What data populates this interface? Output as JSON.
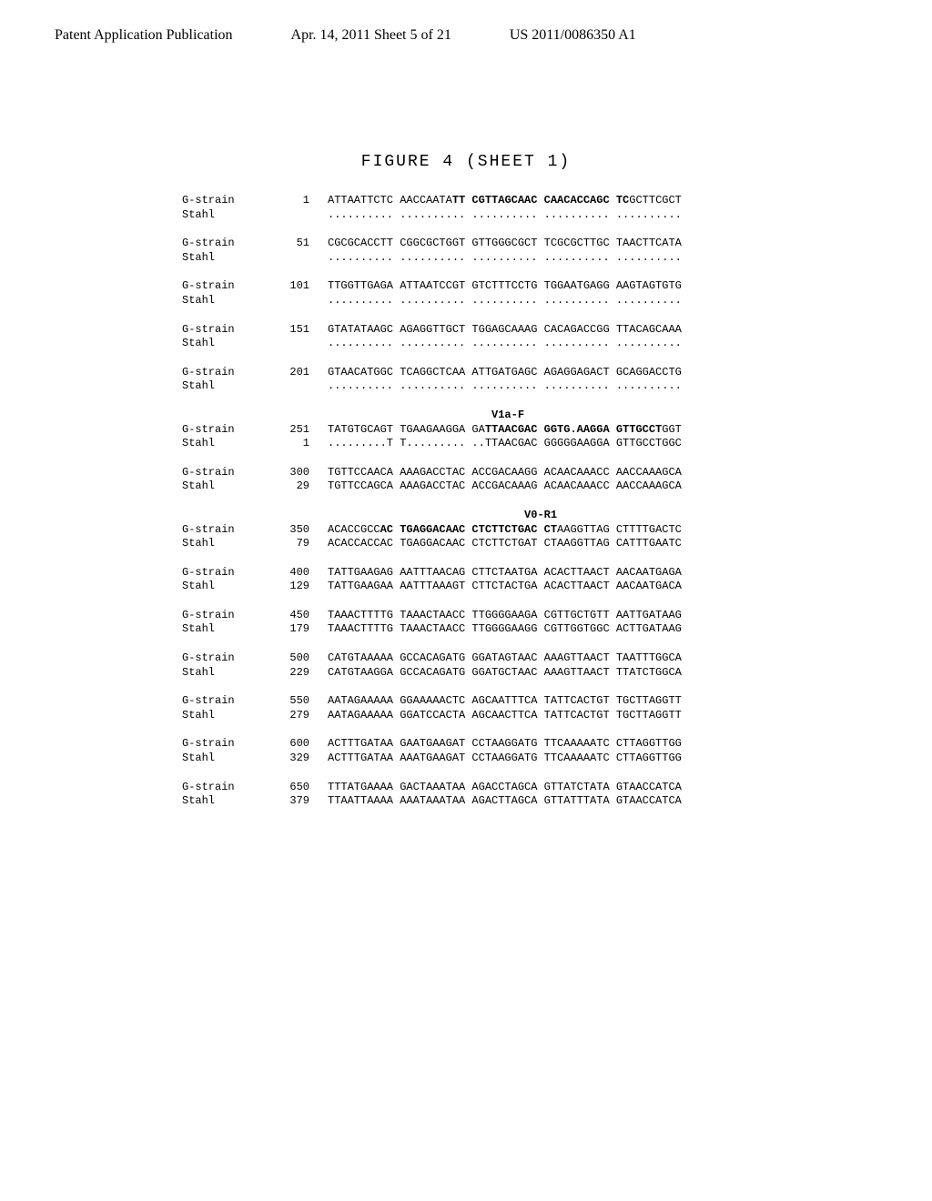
{
  "header": {
    "title": "Patent Application Publication",
    "date": "Apr. 14, 2011  Sheet 5 of 21",
    "pub": "US 2011/0086350 A1"
  },
  "figure_title": "FIGURE 4 (SHEET 1)",
  "blocks": [
    {
      "rows": [
        {
          "label": "G-strain",
          "pos": "1",
          "seq_parts": [
            {
              "t": "ATTAATTCTC AACCAATA"
            },
            {
              "t": "TT CGTTAGCAAC CAACACCAGC TC",
              "b": true
            },
            {
              "t": "GCTTCGCT"
            }
          ]
        },
        {
          "label": "Stahl",
          "pos": "",
          "seq_parts": [
            {
              "t": ".......... .......... .......... .......... .........."
            }
          ]
        }
      ]
    },
    {
      "rows": [
        {
          "label": "G-strain",
          "pos": "51",
          "seq_parts": [
            {
              "t": "CGCGCACCTT CGGCGCTGGT GTTGGGCGCT TCGCGCTTGC TAACTTCATA"
            }
          ]
        },
        {
          "label": "Stahl",
          "pos": "",
          "seq_parts": [
            {
              "t": ".......... .......... .......... .......... .........."
            }
          ]
        }
      ]
    },
    {
      "rows": [
        {
          "label": "G-strain",
          "pos": "101",
          "seq_parts": [
            {
              "t": "TTGGTTGAGA ATTAATCCGT GTCTTTCCTG TGGAATGAGG AAGTAGTGTG"
            }
          ]
        },
        {
          "label": "Stahl",
          "pos": "",
          "seq_parts": [
            {
              "t": ".......... .......... .......... .......... .........."
            }
          ]
        }
      ]
    },
    {
      "rows": [
        {
          "label": "G-strain",
          "pos": "151",
          "seq_parts": [
            {
              "t": "GTATATAAGC AGAGGTTGCT TGGAGCAAAG CACAGACCGG TTACAGCAAA"
            }
          ]
        },
        {
          "label": "Stahl",
          "pos": "",
          "seq_parts": [
            {
              "t": ".......... .......... .......... .......... .........."
            }
          ]
        }
      ]
    },
    {
      "rows": [
        {
          "label": "G-strain",
          "pos": "201",
          "seq_parts": [
            {
              "t": "GTAACATGGC TCAGGCTCAA ATTGATGAGC AGAGGAGACT GCAGGACCTG"
            }
          ]
        },
        {
          "label": "Stahl",
          "pos": "",
          "seq_parts": [
            {
              "t": ".......... .......... .......... .......... .........."
            }
          ]
        }
      ]
    },
    {
      "annotation": "                         V1a-F",
      "rows": [
        {
          "label": "G-strain",
          "pos": "251",
          "seq_parts": [
            {
              "t": "TATGTGCAGT TGAAGAAGGA GA"
            },
            {
              "t": "TTAACGAC GGTG.AAGGA GTTGCCT",
              "b": true
            },
            {
              "t": "GGT"
            }
          ]
        },
        {
          "label": "Stahl",
          "pos": "1",
          "seq_parts": [
            {
              "t": ".........T T......... ..TTAACGAC GGGGGAAGGA GTTGCCTGGC"
            }
          ]
        }
      ]
    },
    {
      "rows": [
        {
          "label": "G-strain",
          "pos": "300",
          "seq_parts": [
            {
              "t": "TGTTCCAACA AAAGACCTAC ACCGACAAGG ACAACAAACC AACCAAAGCA"
            }
          ]
        },
        {
          "label": "Stahl",
          "pos": "29",
          "seq_parts": [
            {
              "t": "TGTTCCAGCA AAAGACCTAC ACCGACAAAG ACAACAAACC AACCAAAGCA"
            }
          ]
        }
      ]
    },
    {
      "annotation": "                              V0-R1",
      "rows": [
        {
          "label": "G-strain",
          "pos": "350",
          "seq_parts": [
            {
              "t": "ACACCGCC"
            },
            {
              "t": "AC TGAGGACAAC CTCTTCTGAC CT",
              "b": true
            },
            {
              "t": "AAGGTTAG CTTTTGACTC"
            }
          ]
        },
        {
          "label": "Stahl",
          "pos": "79",
          "seq_parts": [
            {
              "t": "ACACCACCAC TGAGGACAAC CTCTTCTGAT CTAAGGTTAG CATTTGAATC"
            }
          ]
        }
      ]
    },
    {
      "rows": [
        {
          "label": "G-strain",
          "pos": "400",
          "seq_parts": [
            {
              "t": "TATTGAAGAG AATTTAACAG CTTCTAATGA ACACTTAACT AACAATGAGA"
            }
          ]
        },
        {
          "label": "Stahl",
          "pos": "129",
          "seq_parts": [
            {
              "t": "TATTGAAGAA AATTTAAAGT CTTCTACTGA ACACTTAACT AACAATGACA"
            }
          ]
        }
      ]
    },
    {
      "rows": [
        {
          "label": "G-strain",
          "pos": "450",
          "seq_parts": [
            {
              "t": "TAAACTTTTG TAAACTAACC TTGGGGAAGA CGTTGCTGTT AATTGATAAG"
            }
          ]
        },
        {
          "label": "Stahl",
          "pos": "179",
          "seq_parts": [
            {
              "t": "TAAACTTTTG TAAACTAACC TTGGGGAAGG CGTTGGTGGC ACTTGATAAG"
            }
          ]
        }
      ]
    },
    {
      "rows": [
        {
          "label": "G-strain",
          "pos": "500",
          "seq_parts": [
            {
              "t": "CATGTAAAAA GCCACAGATG GGATAGTAAC AAAGTTAACT TAATTTGGCA"
            }
          ]
        },
        {
          "label": "Stahl",
          "pos": "229",
          "seq_parts": [
            {
              "t": "CATGTAAGGA GCCACAGATG GGATGCTAAC AAAGTTAACT TTATCTGGCA"
            }
          ]
        }
      ]
    },
    {
      "rows": [
        {
          "label": "G-strain",
          "pos": "550",
          "seq_parts": [
            {
              "t": "AATAGAAAAA GGAAAAACTC AGCAATTTCA TATTCACTGT TGCTTAGGTT"
            }
          ]
        },
        {
          "label": "Stahl",
          "pos": "279",
          "seq_parts": [
            {
              "t": "AATAGAAAAA GGATCCACTA AGCAACTTCA TATTCACTGT TGCTTAGGTT"
            }
          ]
        }
      ]
    },
    {
      "rows": [
        {
          "label": "G-strain",
          "pos": "600",
          "seq_parts": [
            {
              "t": "ACTTTGATAA GAATGAAGAT CCTAAGGATG TTCAAAAATC CTTAGGTTGG"
            }
          ]
        },
        {
          "label": "Stahl",
          "pos": "329",
          "seq_parts": [
            {
              "t": "ACTTTGATAA AAATGAAGAT CCTAAGGATG TTCAAAAATC CTTAGGTTGG"
            }
          ]
        }
      ]
    },
    {
      "rows": [
        {
          "label": "G-strain",
          "pos": "650",
          "seq_parts": [
            {
              "t": "TTTATGAAAA GACTAAATAA AGACCTAGCA GTTATCTATA GTAACCATCA"
            }
          ]
        },
        {
          "label": "Stahl",
          "pos": "379",
          "seq_parts": [
            {
              "t": "TTAATTAAAA AAATAAATAA AGACTTAGCA GTTATTTATA GTAACCATCA"
            }
          ]
        }
      ]
    }
  ]
}
